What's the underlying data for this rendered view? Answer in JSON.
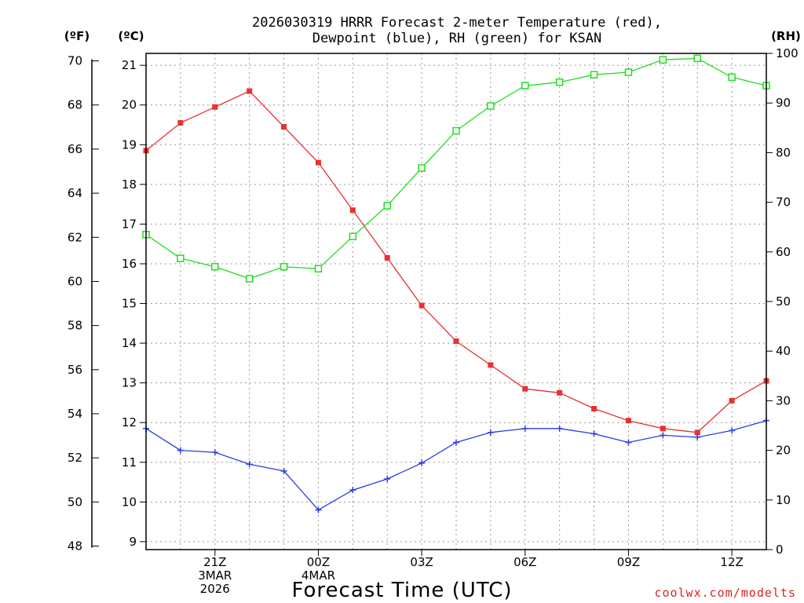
{
  "chart_data": {
    "type": "line",
    "title_line1": "2026030319 HRRR Forecast 2-meter Temperature (red),",
    "title_line2": "Dewpoint (blue), RH (green) for KSAN",
    "xlabel": "Forecast Time (UTC)",
    "credit": "coolwx.com/modelts",
    "left_outer_unit": "(ºF)",
    "left_inner_unit": "(ºC)",
    "right_unit": "(RH)",
    "x_hours": [
      0,
      1,
      2,
      3,
      4,
      5,
      6,
      7,
      8,
      9,
      10,
      11,
      12,
      13,
      14,
      15,
      16,
      17,
      18
    ],
    "x_ticks": [
      {
        "hour": 2,
        "lines": [
          "21Z",
          "3MAR",
          "2026"
        ]
      },
      {
        "hour": 5,
        "lines": [
          "00Z",
          "4MAR"
        ]
      },
      {
        "hour": 8,
        "lines": [
          "03Z"
        ]
      },
      {
        "hour": 11,
        "lines": [
          "06Z"
        ]
      },
      {
        "hour": 14,
        "lines": [
          "09Z"
        ]
      },
      {
        "hour": 17,
        "lines": [
          "12Z"
        ]
      }
    ],
    "celsius_axis": {
      "ylim": [
        8.8,
        21.3
      ],
      "ticks": [
        9,
        10,
        11,
        12,
        13,
        14,
        15,
        16,
        17,
        18,
        19,
        20,
        21
      ]
    },
    "fahrenheit_ticks": [
      48,
      50,
      52,
      54,
      56,
      58,
      60,
      62,
      64,
      66,
      68,
      70
    ],
    "rh_axis": {
      "ylim": [
        0,
        100
      ],
      "ticks": [
        0,
        10,
        20,
        30,
        40,
        50,
        60,
        70,
        80,
        90,
        100
      ]
    },
    "series": [
      {
        "name": "Temperature",
        "unit": "C",
        "color": "#e83030",
        "marker": "filled-square",
        "values": [
          18.85,
          19.55,
          19.95,
          20.35,
          19.45,
          18.55,
          17.35,
          16.15,
          14.95,
          14.05,
          13.45,
          12.85,
          12.75,
          12.35,
          12.05,
          11.85,
          11.75,
          12.55,
          13.05
        ]
      },
      {
        "name": "Dewpoint",
        "unit": "C",
        "color": "#2a3de0",
        "marker": "plus",
        "values": [
          11.85,
          11.3,
          11.25,
          10.95,
          10.78,
          9.8,
          10.3,
          10.58,
          10.98,
          11.5,
          11.75,
          11.85,
          11.85,
          11.72,
          11.5,
          11.68,
          11.63,
          11.8,
          12.05
        ]
      },
      {
        "name": "RH",
        "unit": "%",
        "color": "#22dd22",
        "marker": "open-square",
        "values": [
          63.5,
          58.7,
          57.0,
          54.6,
          57.0,
          56.6,
          63.1,
          69.3,
          76.9,
          84.4,
          89.4,
          93.5,
          94.2,
          95.7,
          96.2,
          98.7,
          99.0,
          95.2,
          93.5
        ]
      }
    ]
  }
}
